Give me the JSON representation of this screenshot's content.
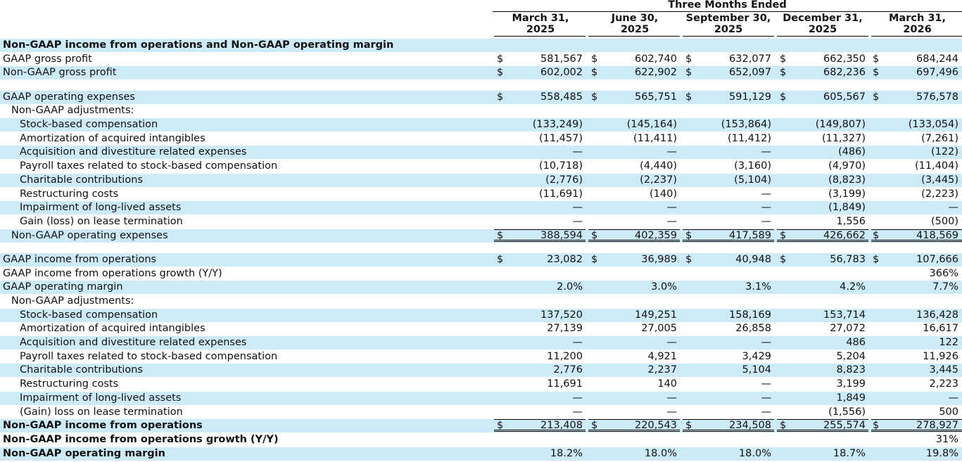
{
  "header": {
    "super": "Three Months Ended",
    "columns": [
      {
        "l1": "March 31,",
        "l2": "2025"
      },
      {
        "l1": "June 30,",
        "l2": "2025"
      },
      {
        "l1": "September 30,",
        "l2": "2025"
      },
      {
        "l1": "December 31,",
        "l2": "2025"
      },
      {
        "l1": "March 31,",
        "l2": "2026"
      }
    ]
  },
  "rows": [
    {
      "label": "Non-GAAP income from operations and Non-GAAP operating margin",
      "bold": true,
      "band": true,
      "indent": 0,
      "dollar": false,
      "values": [
        "",
        "",
        "",
        "",
        ""
      ]
    },
    {
      "label": "GAAP gross profit",
      "indent": 0,
      "dollar": true,
      "values": [
        "581,567",
        "602,740",
        "632,077",
        "662,350",
        "684,244"
      ]
    },
    {
      "label": "Non-GAAP gross profit",
      "indent": 0,
      "band": true,
      "dollar": true,
      "values": [
        "602,002",
        "622,902",
        "652,097",
        "682,236",
        "697,496"
      ]
    },
    {
      "spacer": true
    },
    {
      "label": "GAAP operating expenses",
      "indent": 0,
      "band": true,
      "dollar": true,
      "values": [
        "558,485",
        "565,751",
        "591,129",
        "605,567",
        "576,578"
      ]
    },
    {
      "label": "Non-GAAP adjustments:",
      "indent": 1,
      "values": [
        "",
        "",
        "",
        "",
        ""
      ]
    },
    {
      "label": "Stock-based compensation",
      "indent": 2,
      "band": true,
      "values": [
        "(133,249)",
        "(145,164)",
        "(153,864)",
        "(149,807)",
        "(133,054)"
      ]
    },
    {
      "label": "Amortization of acquired intangibles",
      "indent": 2,
      "values": [
        "(11,457)",
        "(11,411)",
        "(11,412)",
        "(11,327)",
        "(7,261)"
      ]
    },
    {
      "label": "Acquisition and divestiture related expenses",
      "indent": 2,
      "band": true,
      "values": [
        "—",
        "—",
        "—",
        "(486)",
        "(122)"
      ]
    },
    {
      "label": "Payroll taxes related to stock-based compensation",
      "indent": 2,
      "values": [
        "(10,718)",
        "(4,440)",
        "(3,160)",
        "(4,970)",
        "(11,404)"
      ]
    },
    {
      "label": "Charitable contributions",
      "indent": 2,
      "band": true,
      "values": [
        "(2,776)",
        "(2,237)",
        "(5,104)",
        "(8,823)",
        "(3,445)"
      ]
    },
    {
      "label": "Restructuring costs",
      "indent": 2,
      "values": [
        "(11,691)",
        "(140)",
        "—",
        "(3,199)",
        "(2,223)"
      ]
    },
    {
      "label": "Impairment of long-lived assets",
      "indent": 2,
      "band": true,
      "values": [
        "—",
        "—",
        "—",
        "(1,849)",
        "—"
      ]
    },
    {
      "label": "Gain (loss) on lease termination",
      "indent": 2,
      "values": [
        "—",
        "—",
        "—",
        "1,556",
        "(500)"
      ]
    },
    {
      "label": "Non-GAAP operating expenses",
      "indent": 1,
      "band": true,
      "dollar": true,
      "total": true,
      "values": [
        "388,594",
        "402,359",
        "417,589",
        "426,662",
        "418,569"
      ]
    },
    {
      "spacer": true
    },
    {
      "label": "GAAP income from operations",
      "indent": 0,
      "band": true,
      "dollar": true,
      "values": [
        "23,082",
        "36,989",
        "40,948",
        "56,783",
        "107,666"
      ]
    },
    {
      "label": "GAAP income from operations growth (Y/Y)",
      "indent": 0,
      "values": [
        "",
        "",
        "",
        "",
        "366%"
      ]
    },
    {
      "label": "GAAP operating margin",
      "indent": 0,
      "band": true,
      "values": [
        "2.0%",
        "3.0%",
        "3.1%",
        "4.2%",
        "7.7%"
      ]
    },
    {
      "label": "Non-GAAP adjustments:",
      "indent": 1,
      "values": [
        "",
        "",
        "",
        "",
        ""
      ]
    },
    {
      "label": "Stock-based compensation",
      "indent": 2,
      "band": true,
      "values": [
        "137,520",
        "149,251",
        "158,169",
        "153,714",
        "136,428"
      ]
    },
    {
      "label": "Amortization of acquired intangibles",
      "indent": 2,
      "values": [
        "27,139",
        "27,005",
        "26,858",
        "27,072",
        "16,617"
      ]
    },
    {
      "label": "Acquisition and divestiture related expenses",
      "indent": 2,
      "band": true,
      "values": [
        "—",
        "—",
        "—",
        "486",
        "122"
      ]
    },
    {
      "label": "Payroll taxes related to stock-based compensation",
      "indent": 2,
      "values": [
        "11,200",
        "4,921",
        "3,429",
        "5,204",
        "11,926"
      ]
    },
    {
      "label": "Charitable contributions",
      "indent": 2,
      "band": true,
      "values": [
        "2,776",
        "2,237",
        "5,104",
        "8,823",
        "3,445"
      ]
    },
    {
      "label": "Restructuring costs",
      "indent": 2,
      "values": [
        "11,691",
        "140",
        "—",
        "3,199",
        "2,223"
      ]
    },
    {
      "label": "Impairment of long-lived assets",
      "indent": 2,
      "band": true,
      "values": [
        "—",
        "—",
        "—",
        "1,849",
        "—"
      ]
    },
    {
      "label": "(Gain) loss on lease termination",
      "indent": 2,
      "values": [
        "—",
        "—",
        "—",
        "(1,556)",
        "500"
      ]
    },
    {
      "label": "Non-GAAP income from operations",
      "indent": 0,
      "bold": true,
      "band": true,
      "dollar": true,
      "total": true,
      "values": [
        "213,408",
        "220,543",
        "234,508",
        "255,574",
        "278,927"
      ]
    },
    {
      "label": "Non-GAAP income from operations growth (Y/Y)",
      "indent": 0,
      "bold": true,
      "values": [
        "",
        "",
        "",
        "",
        "31%"
      ]
    },
    {
      "label": "Non-GAAP operating margin",
      "indent": 0,
      "bold": true,
      "band": true,
      "values": [
        "18.2%",
        "18.0%",
        "18.0%",
        "18.7%",
        "19.8%"
      ]
    }
  ],
  "dollar_sign": "$"
}
